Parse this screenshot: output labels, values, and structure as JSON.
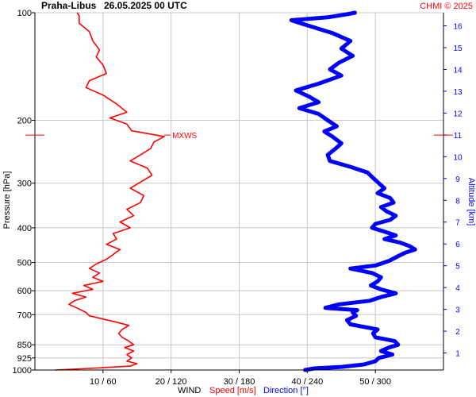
{
  "header": {
    "station": "Praha-Libus",
    "datetime": "26.05.2025 00 UTC",
    "copyright": "CHMI © 2025"
  },
  "chart_data": {
    "type": "line",
    "y_axis_left": {
      "label": "Pressure [hPa]",
      "scale": "log",
      "ticks": [
        100,
        200,
        300,
        400,
        500,
        600,
        700,
        850,
        925,
        1000
      ],
      "ylim": [
        100,
        1000
      ]
    },
    "y_axis_right": {
      "label": "Altitude [km]",
      "ticks": [
        1,
        2,
        3,
        4,
        5,
        6,
        7,
        8,
        9,
        10,
        11,
        12,
        13,
        14,
        15,
        16
      ],
      "ylim": [
        0.22,
        16.6
      ]
    },
    "x_axis": {
      "tick_labels": [
        "10 / 60",
        "20 / 120",
        "30 / 180",
        "40 / 240",
        "50 / 300"
      ],
      "speed_ticks": [
        10,
        20,
        30,
        40,
        50
      ],
      "direction_ticks": [
        60,
        120,
        180,
        240,
        300
      ],
      "speed_range": [
        0,
        60
      ],
      "direction_range": [
        0,
        360
      ]
    },
    "xlabel_parts": {
      "wind": "WIND",
      "speed": "Speed [m/s]",
      "direction": "Direction [°]"
    },
    "annotations": {
      "max_wind": {
        "label": "MXWS",
        "pressure": 220
      }
    },
    "grid": true,
    "colors": {
      "speed": "#ff0000",
      "direction": "#0000ff",
      "grid": "#c8c8c8",
      "text": "#000000"
    },
    "series": [
      {
        "name": "Speed [m/s]",
        "unit": "m/s",
        "points": [
          [
            1000,
            3
          ],
          [
            990,
            8
          ],
          [
            975,
            14
          ],
          [
            960,
            15
          ],
          [
            945,
            13.5
          ],
          [
            925,
            14.2
          ],
          [
            905,
            13.5
          ],
          [
            885,
            14.5
          ],
          [
            865,
            13.2
          ],
          [
            850,
            14.5
          ],
          [
            830,
            13.8
          ],
          [
            810,
            12.8
          ],
          [
            790,
            12.3
          ],
          [
            770,
            12.8
          ],
          [
            750,
            13.8
          ],
          [
            735,
            12
          ],
          [
            720,
            10
          ],
          [
            705,
            8
          ],
          [
            690,
            7.5
          ],
          [
            675,
            6.5
          ],
          [
            655,
            5
          ],
          [
            640,
            5.8
          ],
          [
            625,
            7.5
          ],
          [
            610,
            5.5
          ],
          [
            595,
            8.5
          ],
          [
            580,
            7.2
          ],
          [
            565,
            10
          ],
          [
            550,
            8.5
          ],
          [
            535,
            9.5
          ],
          [
            520,
            8
          ],
          [
            505,
            9
          ],
          [
            490,
            10.5
          ],
          [
            475,
            11.5
          ],
          [
            460,
            12.5
          ],
          [
            445,
            10.5
          ],
          [
            430,
            12
          ],
          [
            415,
            11.5
          ],
          [
            400,
            14
          ],
          [
            385,
            12.5
          ],
          [
            370,
            14.5
          ],
          [
            355,
            13.5
          ],
          [
            340,
            15.5
          ],
          [
            325,
            16
          ],
          [
            310,
            14
          ],
          [
            298,
            15.5
          ],
          [
            285,
            17.2
          ],
          [
            272,
            16.5
          ],
          [
            260,
            14
          ],
          [
            250,
            15.5
          ],
          [
            240,
            17
          ],
          [
            230,
            17.5
          ],
          [
            222,
            19
          ],
          [
            214,
            14.2
          ],
          [
            205,
            13.5
          ],
          [
            197,
            11
          ],
          [
            190,
            13.5
          ],
          [
            180,
            12
          ],
          [
            170,
            10
          ],
          [
            162,
            7.5
          ],
          [
            155,
            8
          ],
          [
            148,
            10.5
          ],
          [
            140,
            10
          ],
          [
            133,
            9
          ],
          [
            127,
            9.5
          ],
          [
            120,
            8.5
          ],
          [
            113,
            8
          ],
          [
            107,
            6.5
          ],
          [
            102,
            6.5
          ],
          [
            100,
            6.2
          ]
        ]
      },
      {
        "name": "Direction [°]",
        "unit": "°",
        "points": [
          [
            1000,
            238
          ],
          [
            990,
            246
          ],
          [
            980,
            270
          ],
          [
            965,
            290
          ],
          [
            945,
            300
          ],
          [
            925,
            303
          ],
          [
            905,
            315
          ],
          [
            885,
            305
          ],
          [
            865,
            312
          ],
          [
            850,
            320
          ],
          [
            830,
            317
          ],
          [
            810,
            300
          ],
          [
            790,
            298
          ],
          [
            770,
            302
          ],
          [
            745,
            278
          ],
          [
            725,
            275
          ],
          [
            705,
            283
          ],
          [
            690,
            280
          ],
          [
            680,
            284
          ],
          [
            670,
            256
          ],
          [
            655,
            268
          ],
          [
            640,
            295
          ],
          [
            625,
            305
          ],
          [
            610,
            318
          ],
          [
            595,
            305
          ],
          [
            580,
            296
          ],
          [
            565,
            302
          ],
          [
            550,
            305
          ],
          [
            535,
            297
          ],
          [
            520,
            278
          ],
          [
            510,
            300
          ],
          [
            495,
            312
          ],
          [
            480,
            320
          ],
          [
            470,
            326
          ],
          [
            460,
            335
          ],
          [
            450,
            330
          ],
          [
            440,
            322
          ],
          [
            430,
            308
          ],
          [
            420,
            318
          ],
          [
            410,
            308
          ],
          [
            400,
            297
          ],
          [
            390,
            300
          ],
          [
            380,
            313
          ],
          [
            370,
            318
          ],
          [
            360,
            310
          ],
          [
            350,
            305
          ],
          [
            340,
            316
          ],
          [
            330,
            313
          ],
          [
            320,
            302
          ],
          [
            310,
            308
          ],
          [
            300,
            303
          ],
          [
            290,
            298
          ],
          [
            280,
            293
          ],
          [
            270,
            278
          ],
          [
            260,
            260
          ],
          [
            250,
            258
          ],
          [
            240,
            265
          ],
          [
            232,
            270
          ],
          [
            222,
            262
          ],
          [
            215,
            255
          ],
          [
            208,
            266
          ],
          [
            200,
            258
          ],
          [
            192,
            250
          ],
          [
            185,
            233
          ],
          [
            178,
            250
          ],
          [
            172,
            242
          ],
          [
            165,
            230
          ],
          [
            158,
            250
          ],
          [
            150,
            270
          ],
          [
            144,
            260
          ],
          [
            138,
            268
          ],
          [
            132,
            280
          ],
          [
            126,
            270
          ],
          [
            120,
            278
          ],
          [
            114,
            262
          ],
          [
            108,
            238
          ],
          [
            105,
            226
          ],
          [
            103,
            258
          ],
          [
            101,
            275
          ],
          [
            100,
            282
          ]
        ]
      }
    ]
  }
}
